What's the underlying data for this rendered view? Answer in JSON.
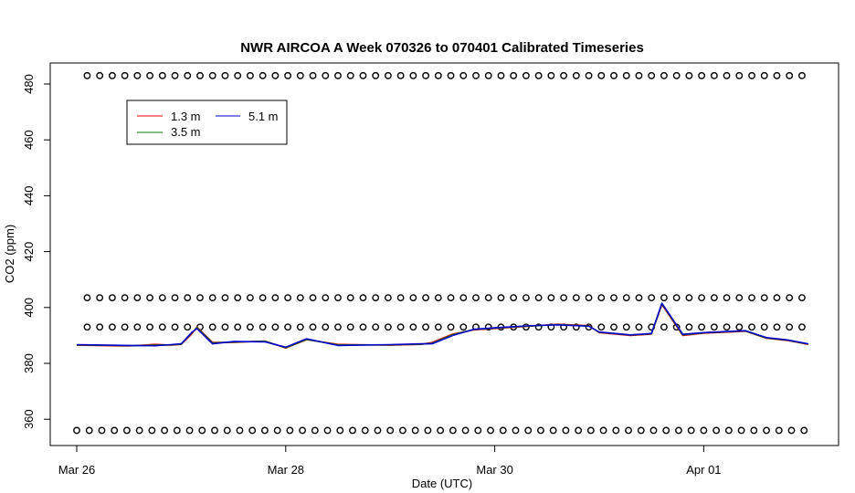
{
  "chart_data": {
    "type": "line",
    "title": "NWR AIRCOA A  Week 070326 to 070401  Calibrated Timeseries",
    "xlabel": "Date (UTC)",
    "ylabel": "CO2 (ppm)",
    "x_ticks": [
      "Mar 26",
      "Mar 28",
      "Mar 30",
      "Apr 01"
    ],
    "y_ticks": [
      "360",
      "380",
      "400",
      "420",
      "440",
      "460",
      "480"
    ],
    "xlim_days": [
      -0.25,
      7.2
    ],
    "ylim": [
      350,
      488
    ],
    "grid": false,
    "legend_position": "top-left",
    "legend": [
      {
        "label": "1.3 m",
        "color": "#ff0000"
      },
      {
        "label": "3.5 m",
        "color": "#008000"
      },
      {
        "label": "5.1 m",
        "color": "#0000cc"
      }
    ],
    "series": [
      {
        "name": "1.3 m",
        "color": "#ff0000",
        "x": [
          0.0,
          0.5,
          0.75,
          0.9,
          1.0,
          1.1,
          1.15,
          1.3,
          1.5,
          1.8,
          2.0,
          2.2,
          2.5,
          3.0,
          3.3,
          3.4,
          3.6,
          3.8,
          4.0,
          4.3,
          4.6,
          4.9,
          5.0,
          5.3,
          5.5,
          5.6,
          5.8,
          6.0,
          6.4,
          6.6,
          6.8,
          7.0
        ],
        "y": [
          386.5,
          386.2,
          386.8,
          386.5,
          386.8,
          390.5,
          393.0,
          387.5,
          387.5,
          388.0,
          385.5,
          388.5,
          386.8,
          386.5,
          386.8,
          387.5,
          390.5,
          392.0,
          392.5,
          393.2,
          394.0,
          393.5,
          391.0,
          390.0,
          390.5,
          401.0,
          390.0,
          390.8,
          391.5,
          389.0,
          388.2,
          386.8
        ]
      },
      {
        "name": "3.5 m",
        "color": "#008000",
        "x": [
          0.0,
          0.5,
          0.75,
          0.9,
          1.0,
          1.1,
          1.15,
          1.3,
          1.5,
          1.8,
          2.0,
          2.2,
          2.5,
          3.0,
          3.3,
          3.4,
          3.6,
          3.8,
          4.0,
          4.3,
          4.6,
          4.9,
          5.0,
          5.3,
          5.5,
          5.6,
          5.8,
          6.0,
          6.4,
          6.6,
          6.8,
          7.0
        ],
        "y": [
          386.6,
          386.3,
          386.5,
          386.6,
          386.9,
          390.8,
          392.8,
          387.3,
          387.6,
          387.9,
          385.6,
          388.6,
          386.6,
          386.6,
          386.9,
          387.2,
          390.3,
          392.1,
          392.6,
          393.3,
          393.9,
          393.4,
          391.1,
          390.1,
          390.6,
          401.3,
          390.2,
          390.9,
          391.6,
          389.1,
          388.3,
          386.9
        ]
      },
      {
        "name": "5.1 m",
        "color": "#0000cc",
        "x": [
          0.0,
          0.5,
          0.75,
          0.9,
          1.0,
          1.1,
          1.15,
          1.3,
          1.5,
          1.8,
          2.0,
          2.2,
          2.5,
          3.0,
          3.3,
          3.4,
          3.6,
          3.8,
          4.0,
          4.3,
          4.6,
          4.9,
          5.0,
          5.3,
          5.5,
          5.6,
          5.8,
          6.0,
          6.4,
          6.6,
          6.8,
          7.0
        ],
        "y": [
          386.7,
          386.4,
          386.3,
          386.7,
          387.0,
          391.0,
          392.5,
          387.0,
          387.8,
          387.7,
          385.8,
          388.8,
          386.4,
          386.7,
          387.0,
          387.0,
          390.0,
          392.2,
          392.7,
          393.4,
          393.8,
          393.3,
          391.2,
          390.2,
          390.7,
          401.5,
          390.4,
          391.0,
          391.7,
          389.2,
          388.4,
          387.0
        ]
      }
    ],
    "reference_levels": [
      {
        "y": 483,
        "x_start": 0.1,
        "x_end": 6.98
      },
      {
        "y": 403.5,
        "x_start": 0.1,
        "x_end": 6.98
      },
      {
        "y": 393,
        "x_start": 0.1,
        "x_end": 6.98
      },
      {
        "y": 356,
        "x_start": 0.0,
        "x_end": 6.98
      }
    ],
    "reference_marker_spacing_days": 0.12,
    "reference_marker": "open-circle",
    "reference_color": "#000000"
  }
}
